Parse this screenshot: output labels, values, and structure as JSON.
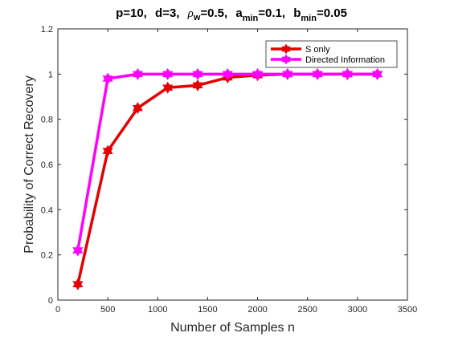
{
  "chart_data": {
    "type": "line",
    "title": {
      "p_label": "p=10,",
      "d_label": "d=3,",
      "rho_symbol": "ρ",
      "rho_sub": "w",
      "rho_value": "=0.5,",
      "a_base": "a",
      "a_sub": "min",
      "a_value": "=0.1,",
      "b_base": "b",
      "b_sub": "min",
      "b_value": "=0.05"
    },
    "xlabel": "Number of Samples n",
    "ylabel": "Probability of Correct Recovery",
    "xlim": [
      0,
      3500
    ],
    "ylim": [
      0,
      1.2
    ],
    "xticks": [
      {
        "value": 0,
        "label": "0"
      },
      {
        "value": 500,
        "label": "500"
      },
      {
        "value": 1000,
        "label": "1000"
      },
      {
        "value": 1500,
        "label": "1500"
      },
      {
        "value": 2000,
        "label": "2000"
      },
      {
        "value": 2500,
        "label": "2500"
      },
      {
        "value": 3000,
        "label": "3000"
      },
      {
        "value": 3500,
        "label": "3500"
      }
    ],
    "yticks": [
      {
        "value": 0,
        "label": "0"
      },
      {
        "value": 0.2,
        "label": "0.2"
      },
      {
        "value": 0.4,
        "label": "0.4"
      },
      {
        "value": 0.6,
        "label": "0.6"
      },
      {
        "value": 0.8,
        "label": "0.8"
      },
      {
        "value": 1,
        "label": "1"
      },
      {
        "value": 1.2,
        "label": "1.2"
      }
    ],
    "grid": false,
    "legend_position": "top-right",
    "x": [
      200,
      500,
      800,
      1100,
      1400,
      1700,
      2000,
      2300,
      2600,
      2900,
      3200
    ],
    "series": [
      {
        "name": "S only",
        "color": "#e60000",
        "marker": "hexagram",
        "values": [
          0.07,
          0.66,
          0.85,
          0.94,
          0.95,
          0.985,
          0.995,
          1.0,
          1.0,
          1.0,
          1.0
        ]
      },
      {
        "name": "Directed Information",
        "color": "#ff00ff",
        "marker": "hexagram",
        "values": [
          0.22,
          0.98,
          1.0,
          1.0,
          1.0,
          1.0,
          1.0,
          1.0,
          1.0,
          1.0,
          1.0
        ]
      }
    ]
  }
}
